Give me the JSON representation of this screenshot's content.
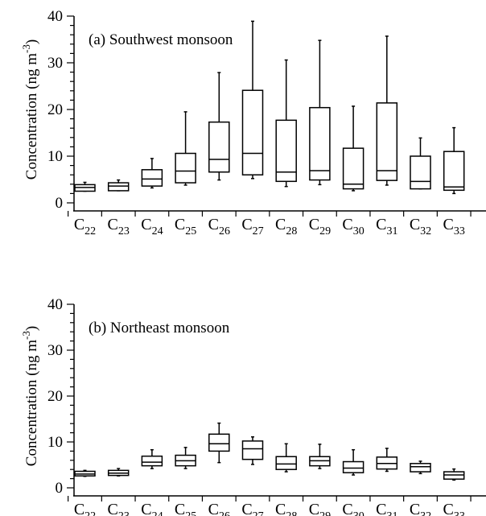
{
  "chart_data": [
    {
      "type": "box",
      "panel_label": "(a) Southwest monsoon",
      "ylabel": "Concentration (ng m",
      "ylabel_superscript": "-3",
      "ylabel_suffix": ")",
      "ylim": [
        0,
        40
      ],
      "yticks": [
        "0",
        "10",
        "20",
        "30",
        "40"
      ],
      "categories": [
        "22",
        "23",
        "24",
        "25",
        "26",
        "27",
        "28",
        "29",
        "30",
        "31",
        "32",
        "33"
      ],
      "category_prefix": "C",
      "boxes": [
        {
          "min": 2.5,
          "q1": 2.5,
          "median": 3.3,
          "q3": 3.9,
          "max": 4.4
        },
        {
          "min": 2.6,
          "q1": 2.6,
          "median": 3.6,
          "q3": 4.3,
          "max": 4.9
        },
        {
          "min": 3.2,
          "q1": 3.6,
          "median": 5.1,
          "q3": 7.1,
          "max": 9.5
        },
        {
          "min": 3.8,
          "q1": 4.3,
          "median": 6.8,
          "q3": 10.6,
          "max": 19.5
        },
        {
          "min": 4.9,
          "q1": 6.6,
          "median": 9.3,
          "q3": 17.3,
          "max": 27.9
        },
        {
          "min": 5.2,
          "q1": 6.0,
          "median": 10.6,
          "q3": 24.1,
          "max": 38.9
        },
        {
          "min": 3.5,
          "q1": 4.6,
          "median": 6.6,
          "q3": 17.7,
          "max": 30.6
        },
        {
          "min": 3.9,
          "q1": 4.9,
          "median": 6.9,
          "q3": 20.4,
          "max": 34.8
        },
        {
          "min": 2.6,
          "q1": 3.0,
          "median": 4.0,
          "q3": 11.7,
          "max": 20.7
        },
        {
          "min": 3.8,
          "q1": 4.8,
          "median": 6.9,
          "q3": 21.4,
          "max": 35.7
        },
        {
          "min": 3.0,
          "q1": 3.0,
          "median": 4.6,
          "q3": 10.0,
          "max": 13.9
        },
        {
          "min": 2.0,
          "q1": 2.7,
          "median": 3.4,
          "q3": 11.0,
          "max": 16.1
        }
      ]
    },
    {
      "type": "box",
      "panel_label": "(b) Northeast monsoon",
      "ylabel": "Concentration (ng m",
      "ylabel_superscript": "-3",
      "ylabel_suffix": ")",
      "ylim": [
        0,
        40
      ],
      "yticks": [
        "0",
        "10",
        "20",
        "30",
        "40"
      ],
      "categories": [
        "22",
        "23",
        "24",
        "25",
        "26",
        "27",
        "28",
        "29",
        "30",
        "31",
        "32",
        "33"
      ],
      "category_prefix": "C",
      "boxes": [
        {
          "min": 2.5,
          "q1": 2.6,
          "median": 3.0,
          "q3": 3.6,
          "max": 3.8
        },
        {
          "min": 2.6,
          "q1": 2.7,
          "median": 3.2,
          "q3": 3.8,
          "max": 4.2
        },
        {
          "min": 4.2,
          "q1": 4.8,
          "median": 5.6,
          "q3": 6.9,
          "max": 8.3
        },
        {
          "min": 4.2,
          "q1": 4.8,
          "median": 5.9,
          "q3": 7.1,
          "max": 8.8
        },
        {
          "min": 5.5,
          "q1": 8.0,
          "median": 9.6,
          "q3": 11.7,
          "max": 14.1
        },
        {
          "min": 5.1,
          "q1": 6.2,
          "median": 8.5,
          "q3": 10.2,
          "max": 11.1
        },
        {
          "min": 3.5,
          "q1": 4.0,
          "median": 5.2,
          "q3": 6.8,
          "max": 9.6
        },
        {
          "min": 4.2,
          "q1": 4.8,
          "median": 5.9,
          "q3": 6.8,
          "max": 9.5
        },
        {
          "min": 2.8,
          "q1": 3.3,
          "median": 4.3,
          "q3": 5.7,
          "max": 8.3
        },
        {
          "min": 3.6,
          "q1": 4.1,
          "median": 5.3,
          "q3": 6.7,
          "max": 8.6
        },
        {
          "min": 3.1,
          "q1": 3.5,
          "median": 4.6,
          "q3": 5.3,
          "max": 5.8
        },
        {
          "min": 1.7,
          "q1": 1.9,
          "median": 2.8,
          "q3": 3.5,
          "max": 4.1
        }
      ]
    }
  ]
}
